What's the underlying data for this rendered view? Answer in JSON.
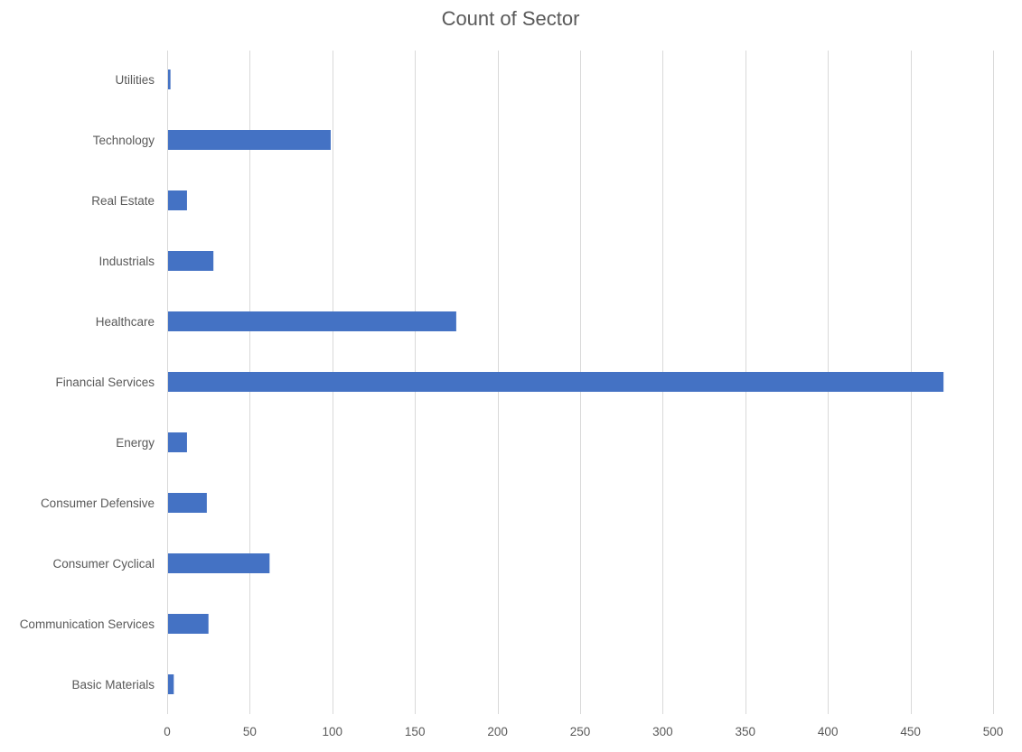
{
  "chart_data": {
    "type": "bar",
    "orientation": "horizontal",
    "title": "Count of Sector",
    "xlabel": "",
    "ylabel": "",
    "categories": [
      "Basic Materials",
      "Communication Services",
      "Consumer Cyclical",
      "Consumer Defensive",
      "Energy",
      "Financial Services",
      "Healthcare",
      "Industrials",
      "Real Estate",
      "Technology",
      "Utilities"
    ],
    "values": [
      4,
      25,
      62,
      24,
      12,
      470,
      175,
      28,
      12,
      99,
      2
    ],
    "xlim": [
      0,
      500
    ],
    "x_ticks": [
      0,
      50,
      100,
      150,
      200,
      250,
      300,
      350,
      400,
      450,
      500
    ],
    "grid": "vertical",
    "legend": "none",
    "bar_color": "#4472c4"
  }
}
